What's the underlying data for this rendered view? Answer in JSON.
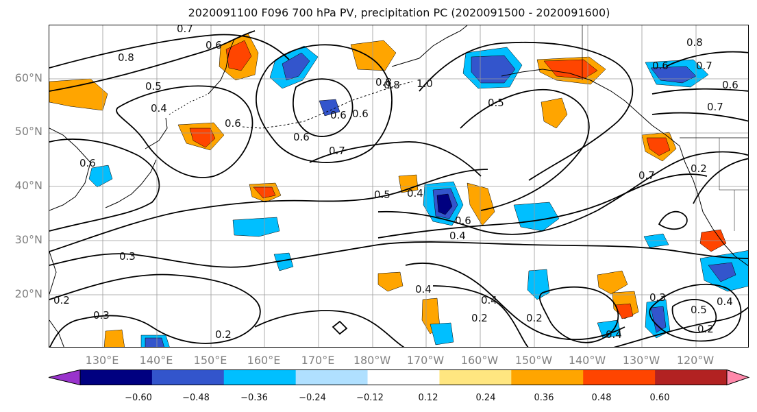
{
  "title": "2020091100 F096 700 hPa PV, precipitation PC (2020091500 - 2020091600)",
  "lat_labels": [
    "60°N",
    "50°N",
    "40°N",
    "30°N",
    "20°N"
  ],
  "lon_labels": [
    "130°E",
    "140°E",
    "150°E",
    "160°E",
    "170°E",
    "180°W",
    "170°W",
    "160°W",
    "150°W",
    "140°W",
    "130°W",
    "120°W"
  ],
  "colorbar": {
    "colors": [
      "#9933cc",
      "#000080",
      "#3355cc",
      "#00bfff",
      "#b0e0ff",
      "#ffffff",
      "#ffe680",
      "#ffa500",
      "#ff4500",
      "#b22222",
      "#ff88aa"
    ],
    "ticks": [
      "−0.60",
      "−0.48",
      "−0.36",
      "−0.24",
      "−0.12",
      "0.12",
      "0.24",
      "0.36",
      "0.48",
      "0.60"
    ]
  },
  "contour_labels": [
    "0.8",
    "0.6",
    "0.7",
    "0.5",
    "0.4",
    "0.6",
    "0.6",
    "0.8",
    "1.0",
    "0.5",
    "0.6",
    "0.6",
    "0.7",
    "0.7",
    "0.8",
    "0.6",
    "0.7",
    "0.6",
    "0.7",
    "0.2",
    "0.5",
    "0.4",
    "0.6",
    "0.4",
    "0.3",
    "0.3",
    "0.2",
    "0.2",
    "0.4",
    "0.4",
    "0.2",
    "0.3",
    "0.5",
    "0.4",
    "0.2",
    "0.4",
    "0.2",
    "0.6",
    "0.8"
  ]
}
